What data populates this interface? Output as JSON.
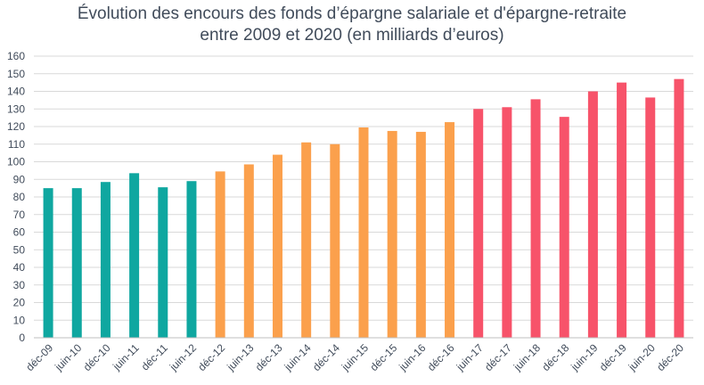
{
  "chart_data": {
    "type": "bar",
    "title_line1": "Évolution des encours des fonds d’épargne salariale et d'épargne-retraite",
    "title_line2": "entre 2009 et 2020 (en milliards d’euros)",
    "xlabel": "",
    "ylabel": "",
    "ylim": [
      0,
      160
    ],
    "ytick_step": 10,
    "grid": true,
    "legend": "none",
    "categories": [
      "déc-09",
      "juin-10",
      "déc-10",
      "juin-11",
      "déc-11",
      "juin-12",
      "déc-12",
      "juin-13",
      "déc-13",
      "juin-14",
      "déc-14",
      "juin-15",
      "déc-15",
      "juin-16",
      "déc-16",
      "juin-17",
      "déc-17",
      "juin-18",
      "déc-18",
      "juin-19",
      "déc-19",
      "juin-20",
      "déc-20"
    ],
    "values": [
      85,
      85,
      88.5,
      93.5,
      85.5,
      89,
      94.5,
      98.5,
      104,
      111,
      110,
      119.5,
      117.5,
      117,
      122.5,
      130,
      131,
      135.5,
      125.5,
      140,
      145,
      136.5,
      147
    ],
    "colors": [
      "#0fa7a0",
      "#0fa7a0",
      "#0fa7a0",
      "#0fa7a0",
      "#0fa7a0",
      "#0fa7a0",
      "#fba04c",
      "#fba04c",
      "#fba04c",
      "#fba04c",
      "#fba04c",
      "#fba04c",
      "#fba04c",
      "#fba04c",
      "#fba04c",
      "#f7536a",
      "#f7536a",
      "#f7536a",
      "#f7536a",
      "#f7536a",
      "#f7536a",
      "#f7536a",
      "#f7536a"
    ]
  }
}
